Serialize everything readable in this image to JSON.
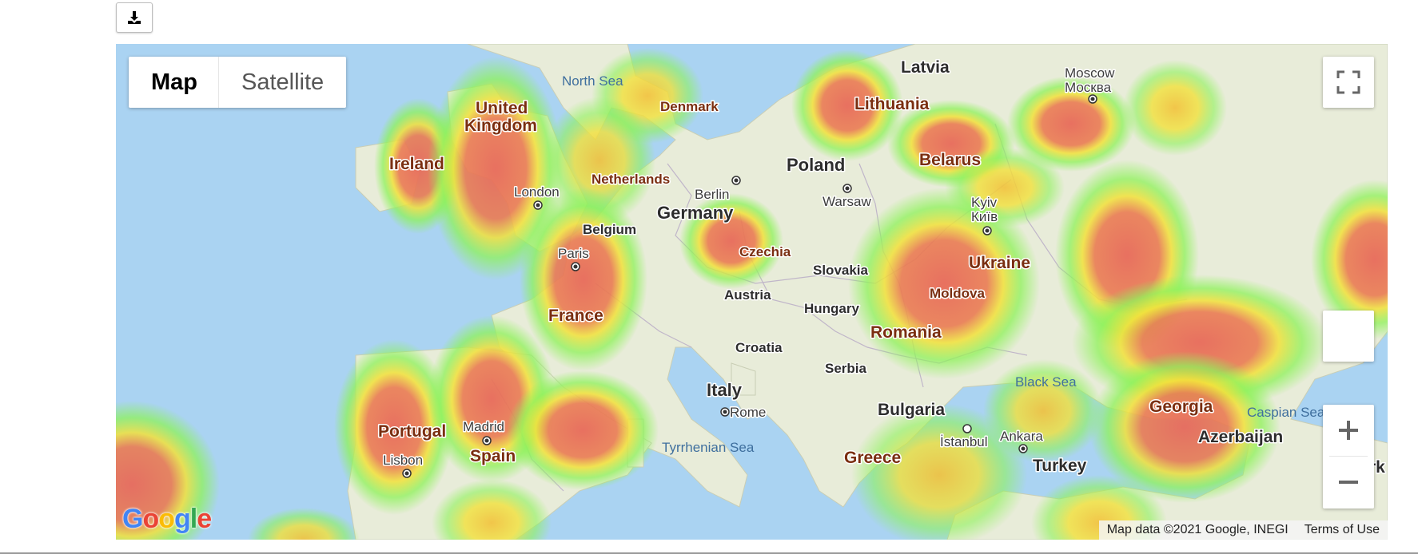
{
  "toolbar": {
    "download_icon": "download-icon"
  },
  "map_type": {
    "map_label": "Map",
    "satellite_label": "Satellite",
    "selected": "Map"
  },
  "controls": {
    "fullscreen_icon": "fullscreen-icon",
    "zoom_in_icon": "plus-icon",
    "zoom_out_icon": "minus-icon"
  },
  "labels": {
    "countries": {
      "latvia": "Latvia",
      "lithuania": "Lithuania",
      "denmark": "Denmark",
      "united_kingdom_1": "United",
      "united_kingdom_2": "Kingdom",
      "ireland": "Ireland",
      "netherlands": "Netherlands",
      "belgium": "Belgium",
      "germany": "Germany",
      "poland": "Poland",
      "belarus": "Belarus",
      "czechia": "Czechia",
      "slovakia": "Slovakia",
      "ukraine": "Ukraine",
      "austria": "Austria",
      "hungary": "Hungary",
      "moldova": "Moldova",
      "france": "France",
      "romania": "Romania",
      "croatia": "Croatia",
      "serbia": "Serbia",
      "italy": "Italy",
      "bulgaria": "Bulgaria",
      "georgia": "Georgia",
      "portugal": "Portugal",
      "spain": "Spain",
      "greece": "Greece",
      "turkey": "Turkey",
      "azerbaijan": "Azerbaijan",
      "cut_right": "rk"
    },
    "cities": {
      "moscow_en": "Moscow",
      "moscow_ru": "Москва",
      "london": "London",
      "berlin": "Berlin",
      "warsaw": "Warsaw",
      "kyiv_en": "Kyiv",
      "kyiv_ua": "Київ",
      "paris": "Paris",
      "rome": "Rome",
      "madrid": "Madrid",
      "lisbon": "Lisbon",
      "istanbul": "İstanbul",
      "ankara": "Ankara"
    },
    "seas": {
      "north_sea": "North Sea",
      "black_sea": "Black Sea",
      "caspian_sea": "Caspian Sea",
      "tyrrhenian_sea": "Tyrrhenian Sea"
    }
  },
  "attribution": {
    "map_data": "Map data ©2021 Google, INEGI",
    "terms": "Terms of Use"
  },
  "logo": {
    "g1": "G",
    "o1": "o",
    "o2": "o",
    "g2": "g",
    "l": "l",
    "e": "e"
  },
  "colors": {
    "water": "#aad3f2",
    "land": "#e8ecd9",
    "heat_low": "#8ef25a",
    "heat_mid": "#f2e13a",
    "heat_high": "#e86a5a"
  }
}
